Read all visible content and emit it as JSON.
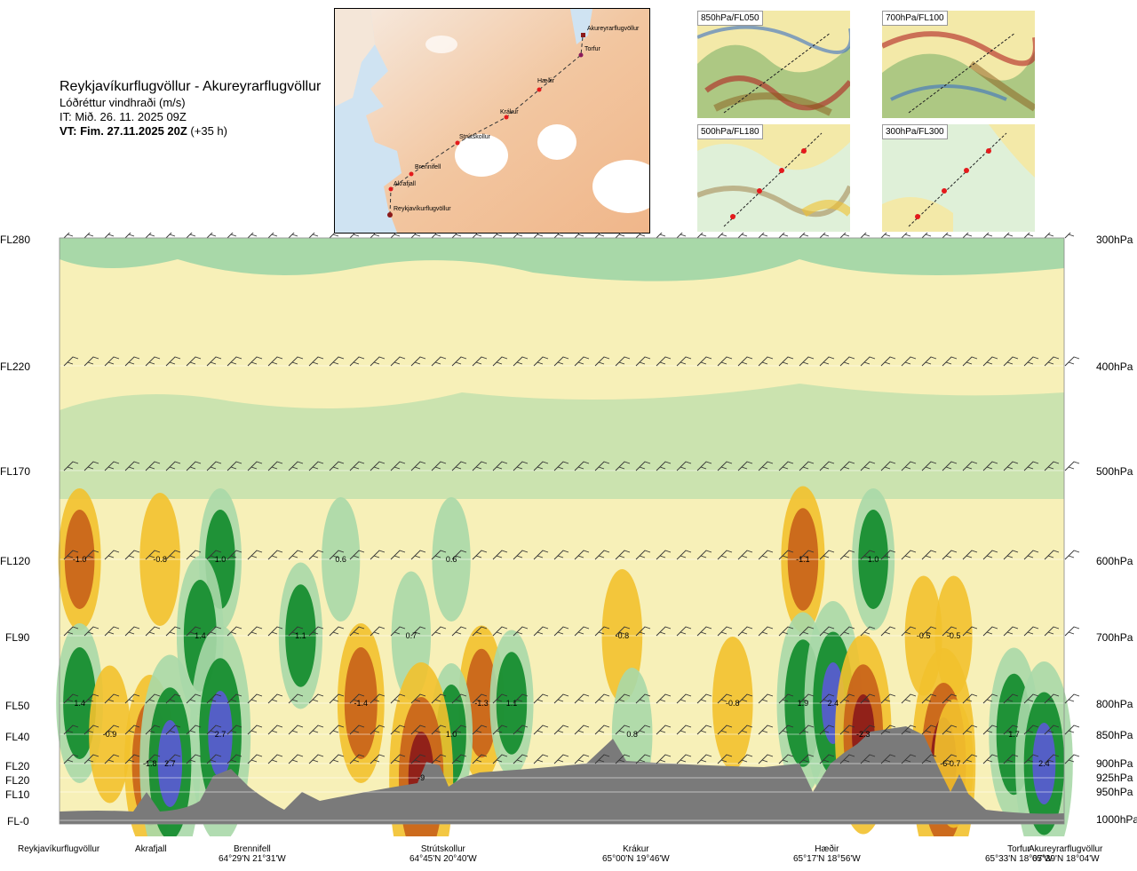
{
  "header": {
    "route": "Reykjavíkurflugvöllur - Akureyrarflugvöllur",
    "subtitle": "Lóðréttur vindhraði (m/s)",
    "issue": "IT: Mið. 26. 11. 2025 09Z",
    "valid_bold": "VT: Fim. 27.11.2025 20Z",
    "valid_offset": " (+35 h)"
  },
  "map": {
    "waypoints": [
      {
        "name": "Akureyrarflugvöllur"
      },
      {
        "name": "Torfur"
      },
      {
        "name": "Hæðir"
      },
      {
        "name": "Krákur"
      },
      {
        "name": "Strútskollur"
      },
      {
        "name": "Brennifell"
      },
      {
        "name": "Akrafjall"
      },
      {
        "name": "Reykjavíkurflugvöllur"
      }
    ]
  },
  "mini_maps": [
    {
      "label": "850hPa/FL050"
    },
    {
      "label": "700hPa/FL100"
    },
    {
      "label": "500hPa/FL180"
    },
    {
      "label": "300hPa/FL300"
    }
  ],
  "chart_data": {
    "type": "heatmap",
    "title": "Reykjavíkurflugvöllur - Akureyrarflugvöllur",
    "subtitle": "Lóðréttur vindhraði (m/s)",
    "y_left_labels": [
      "FL280",
      "FL220",
      "FL170",
      "FL120",
      "FL90",
      "FL50",
      "FL40",
      "FL20",
      "FL20",
      "FL10",
      "FL-0"
    ],
    "y_right_labels": [
      "300hPa",
      "400hPa",
      "500hPa",
      "600hPa",
      "700hPa",
      "800hPa",
      "850hPa",
      "900hPa",
      "925hPa",
      "950hPa",
      "1000hPa"
    ],
    "pressure_levels_hpa": [
      300,
      400,
      500,
      600,
      700,
      800,
      850,
      900,
      925,
      950,
      1000
    ],
    "x_locations": [
      {
        "name": "Reykjavíkurflugvöllur",
        "coord": ""
      },
      {
        "name": "Akrafjall",
        "coord": ""
      },
      {
        "name": "Brennifell",
        "coord": "64°29'N 21°31'W"
      },
      {
        "name": "Strútskollur",
        "coord": "64°45'N 20°40'W"
      },
      {
        "name": "Krákur",
        "coord": "65°00'N 19°46'W"
      },
      {
        "name": "Hæðir",
        "coord": "65°17'N 18°56'W"
      },
      {
        "name": "Torfur",
        "coord": "65°33'N 18°07'W"
      },
      {
        "name": "Akureyrarflugvöllur",
        "coord": "65°39'N 18°04'W"
      }
    ],
    "annotated_values": [
      {
        "text": "-1.0",
        "level_hpa": 600,
        "along": 0.02
      },
      {
        "text": "-0.8",
        "level_hpa": 600,
        "along": 0.1
      },
      {
        "text": "1.0",
        "level_hpa": 600,
        "along": 0.16
      },
      {
        "text": "0.6",
        "level_hpa": 600,
        "along": 0.28
      },
      {
        "text": "0.6",
        "level_hpa": 600,
        "along": 0.39
      },
      {
        "text": "-1.1",
        "level_hpa": 600,
        "along": 0.74
      },
      {
        "text": "1.0",
        "level_hpa": 600,
        "along": 0.81
      },
      {
        "text": "1.4",
        "level_hpa": 700,
        "along": 0.14
      },
      {
        "text": "1.1",
        "level_hpa": 700,
        "along": 0.24
      },
      {
        "text": "0.7",
        "level_hpa": 700,
        "along": 0.35
      },
      {
        "text": "-0.8",
        "level_hpa": 700,
        "along": 0.56
      },
      {
        "text": "-0.5",
        "level_hpa": 700,
        "along": 0.86
      },
      {
        "text": "-0.5",
        "level_hpa": 700,
        "along": 0.89
      },
      {
        "text": "1.4",
        "level_hpa": 800,
        "along": 0.02
      },
      {
        "text": "-1.4",
        "level_hpa": 800,
        "along": 0.3
      },
      {
        "text": "-1.3",
        "level_hpa": 800,
        "along": 0.42
      },
      {
        "text": "1.1",
        "level_hpa": 800,
        "along": 0.45
      },
      {
        "text": "-0.8",
        "level_hpa": 800,
        "along": 0.67
      },
      {
        "text": "1.9",
        "level_hpa": 800,
        "along": 0.74
      },
      {
        "text": "2.4",
        "level_hpa": 800,
        "along": 0.77
      },
      {
        "text": "-0.9",
        "level_hpa": 850,
        "along": 0.05
      },
      {
        "text": "2.7",
        "level_hpa": 850,
        "along": 0.16
      },
      {
        "text": "1.0",
        "level_hpa": 850,
        "along": 0.39
      },
      {
        "text": "0.8",
        "level_hpa": 850,
        "along": 0.57
      },
      {
        "text": "-2.3",
        "level_hpa": 850,
        "along": 0.8
      },
      {
        "text": "1.7",
        "level_hpa": 850,
        "along": 0.95
      },
      {
        "text": "-1.8",
        "level_hpa": 900,
        "along": 0.09
      },
      {
        "text": "2.7",
        "level_hpa": 900,
        "along": 0.11
      },
      {
        "text": "-6",
        "level_hpa": 900,
        "along": 0.88
      },
      {
        "text": "-0.7",
        "level_hpa": 900,
        "along": 0.89
      },
      {
        "text": "2.4",
        "level_hpa": 900,
        "along": 0.98
      },
      {
        "text": "-9",
        "level_hpa": 925,
        "along": 0.36
      }
    ]
  },
  "colors": {
    "strong_up": "#5a5ad6",
    "mid_up": "#0f8a2a",
    "weak_up": "#a8d8a8",
    "neutral": "#f7f0b8",
    "weak_down": "#f2c12e",
    "mid_down": "#c8601a",
    "strong_down": "#8b1a1a",
    "terrain": "#7a7a7a"
  }
}
